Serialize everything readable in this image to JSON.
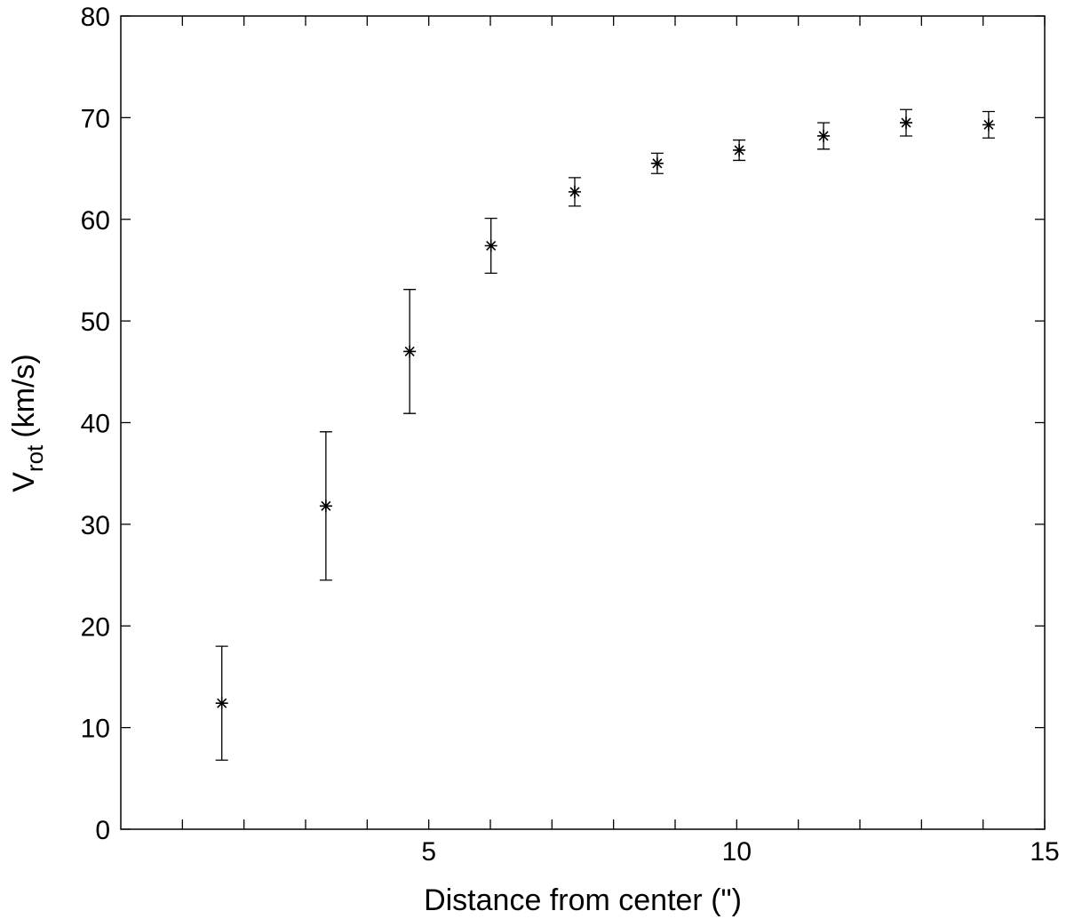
{
  "chart_data": {
    "type": "scatter",
    "xlabel": "Distance from center (\")",
    "ylabel": {
      "text": "V",
      "subscript": "rot",
      "unit": "(km/s)"
    },
    "x": [
      1.64,
      3.33,
      4.69,
      6.01,
      7.37,
      8.71,
      10.04,
      11.41,
      12.75,
      14.09
    ],
    "values": [
      12.4,
      31.8,
      47.0,
      57.4,
      62.7,
      65.5,
      66.8,
      68.2,
      69.5,
      69.3
    ],
    "errors": [
      5.6,
      7.3,
      6.1,
      2.7,
      1.4,
      1.0,
      1.0,
      1.3,
      1.3,
      1.3
    ],
    "color": "#000000",
    "xlim": [
      0,
      15
    ],
    "xticks": [
      5,
      10,
      15
    ],
    "xminorticks": [
      1,
      2,
      3,
      4,
      6,
      7,
      8,
      9,
      11,
      12,
      13,
      14
    ],
    "ylim": [
      0,
      80
    ],
    "yticks": [
      0,
      10,
      20,
      30,
      40,
      50,
      60,
      70,
      80
    ],
    "grid": false
  }
}
